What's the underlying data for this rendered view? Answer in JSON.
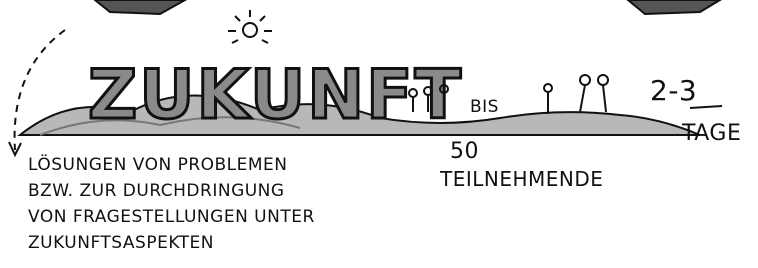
{
  "title": "ZUKUNFT",
  "participants": {
    "from_word": "BIS",
    "count": "50",
    "label": "TEILNEHMENDE"
  },
  "duration": {
    "value": "2-3",
    "label": "TAGE"
  },
  "description": [
    "LÖSUNGEN VON PROBLEMEN",
    "BZW. ZUR DURCHDRINGUNG",
    "VON FRAGESTELLUNGEN UNTER",
    "ZUKUNFTSASPEKTEN"
  ]
}
